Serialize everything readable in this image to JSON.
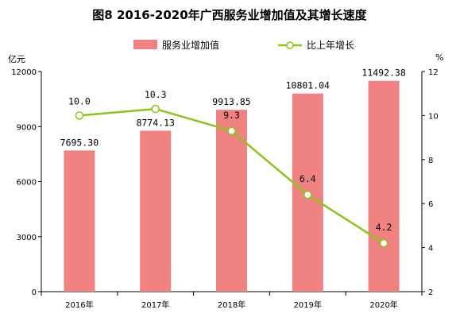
{
  "chart_data": {
    "type": "bar",
    "title": "图8   2016-2020年广西服务业增加值及其增长速度",
    "categories": [
      "2016年",
      "2017年",
      "2018年",
      "2019年",
      "2020年"
    ],
    "series": [
      {
        "name": "服务业增加值",
        "type": "bar",
        "axis": "left",
        "values": [
          7695.3,
          8774.13,
          9913.85,
          10801.04,
          11492.38
        ],
        "labels": [
          "7695.30",
          "8774.13",
          "9913.85",
          "10801.04",
          "11492.38"
        ],
        "color": "#f08282"
      },
      {
        "name": "比上年增长",
        "type": "line",
        "axis": "right",
        "values": [
          10.0,
          10.3,
          9.3,
          6.4,
          4.2
        ],
        "labels": [
          "10.0",
          "10.3",
          "9.3",
          "6.4",
          "4.2"
        ],
        "color": "#8dc21f"
      }
    ],
    "y_left": {
      "unit": "亿元",
      "min": 0,
      "max": 12000,
      "ticks": [
        "0",
        "3000",
        "6000",
        "9000",
        "12000"
      ]
    },
    "y_right": {
      "unit": "%",
      "min": 2,
      "max": 12,
      "ticks": [
        "2",
        "4",
        "6",
        "8",
        "10",
        "12"
      ]
    },
    "grid": false,
    "legend_position": "top-center"
  }
}
